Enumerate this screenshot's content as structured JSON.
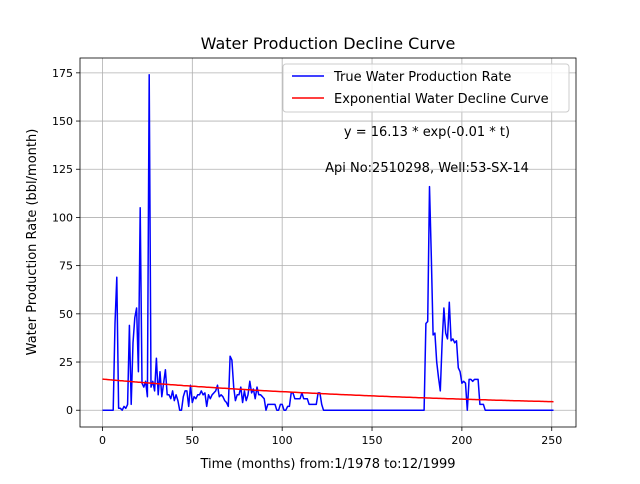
{
  "chart_data": {
    "type": "line",
    "title": "Water Production Decline Curve",
    "xlabel": "Time (months) from:1/1978 to:12/1999",
    "ylabel": "Water Production Rate (bbl/month)",
    "xlim": [
      -12.5,
      263.5
    ],
    "ylim": [
      -8.7,
      182.7
    ],
    "xticks": [
      0,
      50,
      100,
      150,
      200,
      250
    ],
    "yticks": [
      0,
      25,
      50,
      75,
      100,
      125,
      150,
      175
    ],
    "grid": true,
    "legend_position": "top-right",
    "annotations": [
      "y = 16.13 * exp(-0.01 * t)",
      "Api No:2510298, Well:53-SX-14"
    ],
    "colors": {
      "actual": "#0000ff",
      "fit": "#ff0000",
      "grid": "#b0b0b0"
    },
    "series": [
      {
        "name": "True Water Production Rate",
        "color": "#0000ff",
        "points": [
          [
            0,
            0
          ],
          [
            1,
            0
          ],
          [
            2,
            0
          ],
          [
            3,
            0
          ],
          [
            4,
            0
          ],
          [
            5,
            0
          ],
          [
            6,
            0
          ],
          [
            7,
            45
          ],
          [
            8,
            69
          ],
          [
            9,
            1
          ],
          [
            10,
            1
          ],
          [
            11,
            0
          ],
          [
            12,
            2
          ],
          [
            13,
            1
          ],
          [
            14,
            3
          ],
          [
            15,
            44
          ],
          [
            16,
            3
          ],
          [
            17,
            35
          ],
          [
            18,
            48
          ],
          [
            19,
            53
          ],
          [
            20,
            20
          ],
          [
            21,
            105
          ],
          [
            22,
            14
          ],
          [
            23,
            12
          ],
          [
            24,
            15
          ],
          [
            25,
            7
          ],
          [
            26,
            174
          ],
          [
            27,
            12
          ],
          [
            28,
            15
          ],
          [
            29,
            10
          ],
          [
            30,
            27
          ],
          [
            31,
            8
          ],
          [
            32,
            20
          ],
          [
            33,
            7
          ],
          [
            34,
            14
          ],
          [
            35,
            21
          ],
          [
            36,
            8
          ],
          [
            37,
            8
          ],
          [
            38,
            6
          ],
          [
            39,
            10
          ],
          [
            40,
            5
          ],
          [
            41,
            8
          ],
          [
            42,
            5
          ],
          [
            43,
            0
          ],
          [
            44,
            0
          ],
          [
            45,
            7
          ],
          [
            46,
            10
          ],
          [
            47,
            10
          ],
          [
            48,
            2
          ],
          [
            49,
            13
          ],
          [
            50,
            4
          ],
          [
            51,
            7
          ],
          [
            52,
            6
          ],
          [
            53,
            8
          ],
          [
            54,
            8
          ],
          [
            55,
            10
          ],
          [
            56,
            8
          ],
          [
            57,
            9
          ],
          [
            58,
            2
          ],
          [
            59,
            8
          ],
          [
            60,
            6
          ],
          [
            61,
            8
          ],
          [
            62,
            9
          ],
          [
            63,
            10
          ],
          [
            64,
            13
          ],
          [
            65,
            7
          ],
          [
            66,
            8
          ],
          [
            67,
            7
          ],
          [
            68,
            5
          ],
          [
            69,
            4
          ],
          [
            70,
            2
          ],
          [
            71,
            28
          ],
          [
            72,
            26
          ],
          [
            73,
            12
          ],
          [
            74,
            5
          ],
          [
            75,
            8
          ],
          [
            76,
            8
          ],
          [
            77,
            12
          ],
          [
            78,
            4
          ],
          [
            79,
            10
          ],
          [
            80,
            5
          ],
          [
            81,
            8
          ],
          [
            82,
            15
          ],
          [
            83,
            9
          ],
          [
            84,
            11
          ],
          [
            85,
            6
          ],
          [
            86,
            12
          ],
          [
            87,
            8
          ],
          [
            88,
            8
          ],
          [
            89,
            7
          ],
          [
            90,
            6
          ],
          [
            91,
            0
          ],
          [
            92,
            3
          ],
          [
            93,
            3
          ],
          [
            94,
            3
          ],
          [
            95,
            3
          ],
          [
            96,
            3
          ],
          [
            97,
            0
          ],
          [
            98,
            0
          ],
          [
            99,
            3
          ],
          [
            100,
            3
          ],
          [
            101,
            0
          ],
          [
            102,
            0
          ],
          [
            103,
            2
          ],
          [
            104,
            2
          ],
          [
            105,
            9
          ],
          [
            106,
            9
          ],
          [
            107,
            6
          ],
          [
            108,
            6
          ],
          [
            109,
            6
          ],
          [
            110,
            6
          ],
          [
            111,
            9
          ],
          [
            112,
            6
          ],
          [
            113,
            6
          ],
          [
            114,
            6
          ],
          [
            115,
            3
          ],
          [
            116,
            3
          ],
          [
            117,
            3
          ],
          [
            118,
            3
          ],
          [
            119,
            3
          ],
          [
            120,
            9
          ],
          [
            121,
            9
          ],
          [
            122,
            3
          ],
          [
            123,
            0
          ],
          [
            124,
            0
          ],
          [
            125,
            0
          ],
          [
            130,
            0
          ],
          [
            140,
            0
          ],
          [
            150,
            0
          ],
          [
            160,
            0
          ],
          [
            170,
            0
          ],
          [
            179,
            0
          ],
          [
            180,
            45
          ],
          [
            181,
            46
          ],
          [
            182,
            116
          ],
          [
            183,
            80
          ],
          [
            184,
            39
          ],
          [
            185,
            40
          ],
          [
            186,
            25
          ],
          [
            187,
            17
          ],
          [
            188,
            10
          ],
          [
            189,
            35
          ],
          [
            190,
            53
          ],
          [
            191,
            40
          ],
          [
            192,
            37
          ],
          [
            193,
            56
          ],
          [
            194,
            36
          ],
          [
            195,
            37
          ],
          [
            196,
            35
          ],
          [
            197,
            36
          ],
          [
            198,
            22
          ],
          [
            199,
            20
          ],
          [
            200,
            14
          ],
          [
            201,
            15
          ],
          [
            202,
            14
          ],
          [
            203,
            0
          ],
          [
            204,
            16
          ],
          [
            205,
            16
          ],
          [
            206,
            15
          ],
          [
            207,
            16
          ],
          [
            208,
            16
          ],
          [
            209,
            16
          ],
          [
            210,
            3
          ],
          [
            211,
            3
          ],
          [
            212,
            3
          ],
          [
            213,
            0
          ],
          [
            214,
            0
          ],
          [
            220,
            0
          ],
          [
            230,
            0
          ],
          [
            240,
            0
          ],
          [
            251,
            0
          ]
        ]
      },
      {
        "name": "Exponential Water Decline Curve",
        "color": "#ff0000",
        "equation": "y = 16.13 * exp(-0.01 * t)",
        "a": 16.13,
        "b": -0.00515,
        "t_start": 0,
        "t_end": 251
      }
    ]
  }
}
